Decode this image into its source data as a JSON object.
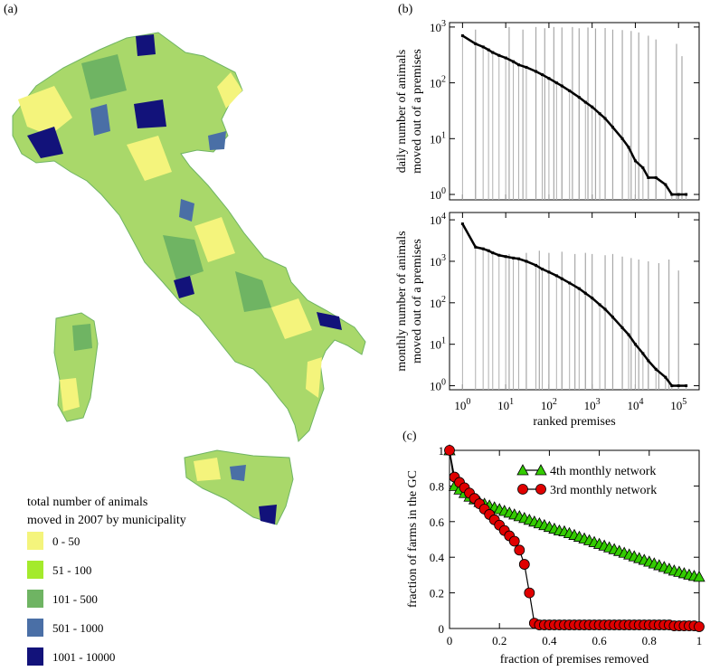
{
  "panel_labels": {
    "a": "(a)",
    "b": "(b)",
    "c": "(c)"
  },
  "map": {
    "legend_title_line1": "total number of animals",
    "legend_title_line2": "moved in 2007 by municipality",
    "legend": [
      {
        "label": "0 - 50",
        "color": "#f4f47c"
      },
      {
        "label": "51 - 100",
        "color": "#a4ea2c"
      },
      {
        "label": "101 - 500",
        "color": "#6fb463"
      },
      {
        "label": "501 - 1000",
        "color": "#4a6fa6"
      },
      {
        "label": "1001 - 10000",
        "color": "#12127a"
      }
    ]
  },
  "chart_data": [
    {
      "type": "scatter",
      "panel": "b-top",
      "xlabel": "",
      "ylabel_line1": "daily number of animals",
      "ylabel_line2": "moved out of a premises",
      "xscale": "log",
      "yscale": "log",
      "xlim": [
        0.5,
        300000
      ],
      "ylim": [
        0.8,
        1200
      ],
      "y_ticks": [
        {
          "v": 1,
          "label": "10",
          "exp": "0"
        },
        {
          "v": 10,
          "label": "10",
          "exp": "1"
        },
        {
          "v": 100,
          "label": "10",
          "exp": "2"
        },
        {
          "v": 1000,
          "label": "10",
          "exp": "3"
        }
      ],
      "points": [
        [
          1,
          700
        ],
        [
          2,
          500
        ],
        [
          3,
          440
        ],
        [
          4,
          390
        ],
        [
          5,
          350
        ],
        [
          7,
          310
        ],
        [
          10,
          280
        ],
        [
          15,
          240
        ],
        [
          20,
          210
        ],
        [
          30,
          190
        ],
        [
          50,
          160
        ],
        [
          70,
          140
        ],
        [
          100,
          120
        ],
        [
          150,
          100
        ],
        [
          200,
          88
        ],
        [
          300,
          72
        ],
        [
          500,
          55
        ],
        [
          700,
          45
        ],
        [
          1000,
          37
        ],
        [
          1500,
          28
        ],
        [
          2000,
          23
        ],
        [
          3000,
          16
        ],
        [
          5000,
          10
        ],
        [
          7000,
          7
        ],
        [
          10000,
          4
        ],
        [
          15000,
          3
        ],
        [
          20000,
          2
        ],
        [
          30000,
          2
        ],
        [
          50000,
          1.5
        ],
        [
          70000,
          1
        ],
        [
          100000,
          1
        ],
        [
          150000,
          1
        ]
      ],
      "error_spikes": [
        [
          2,
          900
        ],
        [
          12,
          1000
        ],
        [
          25,
          900
        ],
        [
          50,
          1000
        ],
        [
          80,
          950
        ],
        [
          130,
          1000
        ],
        [
          200,
          980
        ],
        [
          350,
          1000
        ],
        [
          500,
          950
        ],
        [
          800,
          980
        ],
        [
          1200,
          940
        ],
        [
          2000,
          960
        ],
        [
          3000,
          900
        ],
        [
          5000,
          880
        ],
        [
          8000,
          850
        ],
        [
          12000,
          800
        ],
        [
          20000,
          700
        ],
        [
          30000,
          600
        ],
        [
          90000,
          500
        ],
        [
          120000,
          300
        ]
      ],
      "grid": false
    },
    {
      "type": "scatter",
      "panel": "b-bottom",
      "xlabel": "ranked premises",
      "ylabel_line1": "monthly number of animals",
      "ylabel_line2": "moved out of a premises",
      "xscale": "log",
      "yscale": "log",
      "xlim": [
        0.5,
        300000
      ],
      "ylim": [
        0.8,
        15000
      ],
      "x_ticks": [
        {
          "v": 1,
          "label": "10",
          "exp": "0"
        },
        {
          "v": 10,
          "label": "10",
          "exp": "1"
        },
        {
          "v": 100,
          "label": "10",
          "exp": "2"
        },
        {
          "v": 1000,
          "label": "10",
          "exp": "3"
        },
        {
          "v": 10000,
          "label": "10",
          "exp": "4"
        },
        {
          "v": 100000,
          "label": "10",
          "exp": "5"
        }
      ],
      "y_ticks": [
        {
          "v": 1,
          "label": "10",
          "exp": "0"
        },
        {
          "v": 10,
          "label": "10",
          "exp": "1"
        },
        {
          "v": 100,
          "label": "10",
          "exp": "2"
        },
        {
          "v": 1000,
          "label": "10",
          "exp": "3"
        },
        {
          "v": 10000,
          "label": "10",
          "exp": "4"
        }
      ],
      "points": [
        [
          1,
          8000
        ],
        [
          2,
          2200
        ],
        [
          3,
          2000
        ],
        [
          4,
          1800
        ],
        [
          5,
          1600
        ],
        [
          7,
          1400
        ],
        [
          10,
          1300
        ],
        [
          15,
          1200
        ],
        [
          20,
          1150
        ],
        [
          30,
          1000
        ],
        [
          50,
          800
        ],
        [
          70,
          650
        ],
        [
          100,
          550
        ],
        [
          150,
          450
        ],
        [
          200,
          380
        ],
        [
          300,
          300
        ],
        [
          500,
          220
        ],
        [
          700,
          170
        ],
        [
          1000,
          130
        ],
        [
          1500,
          90
        ],
        [
          2000,
          70
        ],
        [
          3000,
          45
        ],
        [
          5000,
          25
        ],
        [
          7000,
          17
        ],
        [
          10000,
          10
        ],
        [
          15000,
          6
        ],
        [
          20000,
          4
        ],
        [
          30000,
          2.5
        ],
        [
          50000,
          1.6
        ],
        [
          70000,
          1
        ],
        [
          100000,
          1
        ],
        [
          150000,
          1
        ]
      ],
      "error_spikes": [
        [
          12,
          1500
        ],
        [
          30,
          1600
        ],
        [
          60,
          1800
        ],
        [
          100,
          1600
        ],
        [
          200,
          1700
        ],
        [
          400,
          1500
        ],
        [
          700,
          1600
        ],
        [
          1000,
          1500
        ],
        [
          2000,
          1400
        ],
        [
          3000,
          1500
        ],
        [
          5000,
          1300
        ],
        [
          8000,
          1200
        ],
        [
          12000,
          1100
        ],
        [
          20000,
          1000
        ],
        [
          35000,
          900
        ],
        [
          60000,
          1100
        ],
        [
          100000,
          600
        ]
      ],
      "grid": false
    },
    {
      "type": "line",
      "panel": "c",
      "xlabel": "fraction of premises removed",
      "ylabel": "fraction of farms in the GC",
      "xlim": [
        0,
        1
      ],
      "ylim": [
        0,
        1
      ],
      "x_ticks": [
        "0",
        "0.2",
        "0.4",
        "0.6",
        "0.8",
        "1"
      ],
      "y_ticks": [
        "0",
        "0.2",
        "0.4",
        "0.6",
        "0.8",
        "1"
      ],
      "legend_position": "top-right",
      "grid": false,
      "series": [
        {
          "name": "4th monthly network",
          "color": "#33cc00",
          "marker": "triangle",
          "x": [
            0,
            0.02,
            0.04,
            0.06,
            0.08,
            0.1,
            0.12,
            0.14,
            0.16,
            0.18,
            0.2,
            0.22,
            0.24,
            0.26,
            0.28,
            0.3,
            0.32,
            0.34,
            0.36,
            0.38,
            0.4,
            0.42,
            0.44,
            0.46,
            0.48,
            0.5,
            0.52,
            0.54,
            0.56,
            0.58,
            0.6,
            0.62,
            0.64,
            0.66,
            0.68,
            0.7,
            0.72,
            0.74,
            0.76,
            0.78,
            0.8,
            0.82,
            0.84,
            0.86,
            0.88,
            0.9,
            0.92,
            0.94,
            0.96,
            0.98,
            1.0
          ],
          "y": [
            1.0,
            0.8,
            0.78,
            0.76,
            0.74,
            0.725,
            0.71,
            0.7,
            0.69,
            0.68,
            0.67,
            0.66,
            0.65,
            0.64,
            0.63,
            0.62,
            0.61,
            0.6,
            0.59,
            0.58,
            0.57,
            0.56,
            0.55,
            0.545,
            0.535,
            0.525,
            0.515,
            0.505,
            0.495,
            0.485,
            0.475,
            0.465,
            0.455,
            0.445,
            0.435,
            0.425,
            0.415,
            0.405,
            0.395,
            0.385,
            0.375,
            0.365,
            0.355,
            0.345,
            0.335,
            0.325,
            0.318,
            0.31,
            0.302,
            0.295,
            0.29
          ]
        },
        {
          "name": "3rd monthly network",
          "color": "#e00000",
          "marker": "circle",
          "x": [
            0,
            0.02,
            0.04,
            0.06,
            0.08,
            0.1,
            0.12,
            0.14,
            0.16,
            0.18,
            0.2,
            0.22,
            0.24,
            0.26,
            0.28,
            0.3,
            0.32,
            0.34,
            0.36,
            0.38,
            0.4,
            0.42,
            0.44,
            0.46,
            0.48,
            0.5,
            0.52,
            0.54,
            0.56,
            0.58,
            0.6,
            0.62,
            0.64,
            0.66,
            0.68,
            0.7,
            0.72,
            0.74,
            0.76,
            0.78,
            0.8,
            0.82,
            0.84,
            0.86,
            0.88,
            0.9,
            0.92,
            0.94,
            0.96,
            0.98,
            1.0
          ],
          "y": [
            1.0,
            0.85,
            0.82,
            0.79,
            0.76,
            0.73,
            0.7,
            0.67,
            0.64,
            0.61,
            0.58,
            0.55,
            0.52,
            0.49,
            0.44,
            0.36,
            0.2,
            0.03,
            0.02,
            0.02,
            0.02,
            0.02,
            0.02,
            0.02,
            0.02,
            0.02,
            0.02,
            0.02,
            0.02,
            0.02,
            0.02,
            0.02,
            0.02,
            0.02,
            0.02,
            0.02,
            0.02,
            0.02,
            0.02,
            0.02,
            0.02,
            0.02,
            0.02,
            0.02,
            0.02,
            0.015,
            0.015,
            0.015,
            0.015,
            0.015,
            0.01
          ]
        }
      ]
    }
  ]
}
